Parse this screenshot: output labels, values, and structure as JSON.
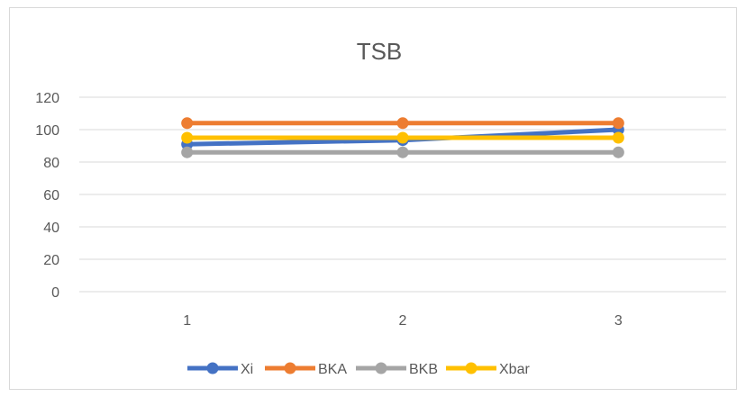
{
  "chart_data": {
    "type": "line",
    "title": "TSB",
    "x": [
      "1",
      "2",
      "3"
    ],
    "yticks": [
      "0",
      "20",
      "40",
      "60",
      "80",
      "100",
      "120"
    ],
    "ylim": [
      0,
      120
    ],
    "grid": true,
    "legend_position": "bottom",
    "series": [
      {
        "name": "Xi",
        "values": [
          91,
          93.5,
          100
        ],
        "color": "#4472C4"
      },
      {
        "name": "BKA",
        "values": [
          104,
          104,
          104
        ],
        "color": "#ED7D31"
      },
      {
        "name": "BKB",
        "values": [
          86,
          86,
          86
        ],
        "color": "#A5A5A5"
      },
      {
        "name": "Xbar",
        "values": [
          95,
          95,
          95
        ],
        "color": "#FFC000"
      }
    ]
  }
}
